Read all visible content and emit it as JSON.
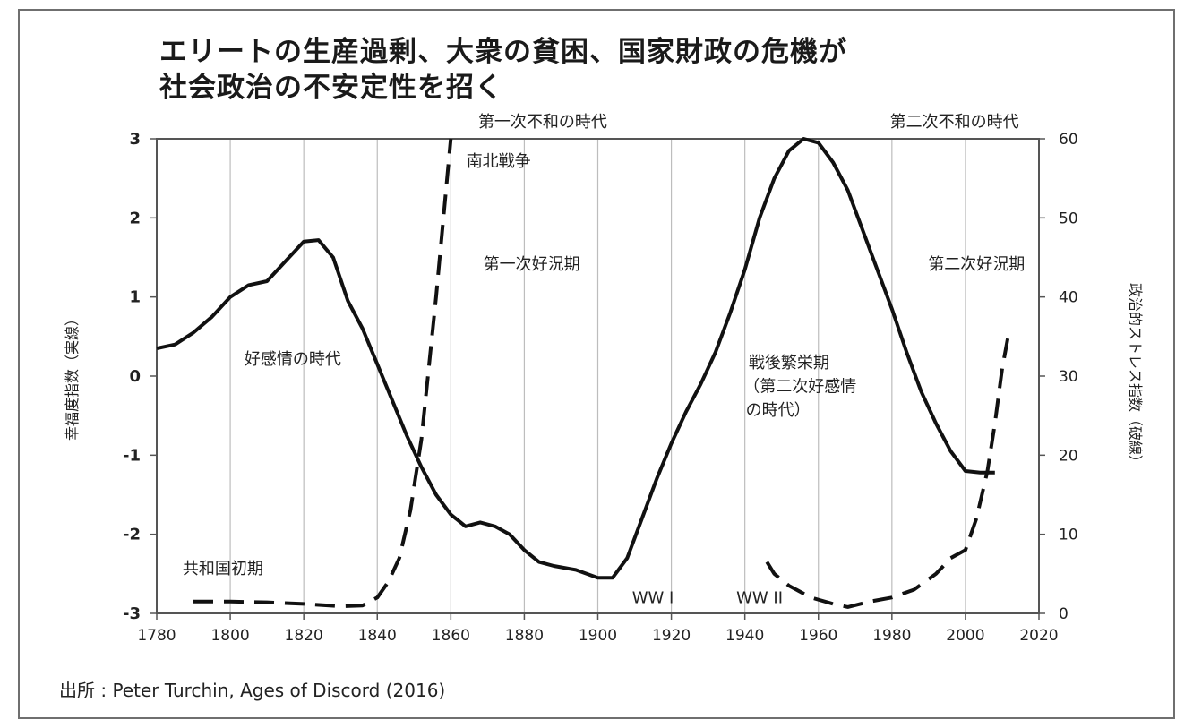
{
  "chart_data": {
    "type": "line",
    "title_line1": "エリートの生産過剰、大衆の貧困、国家財政の危機が",
    "title_line2": "社会政治の不安定性を招く",
    "ylabel_left": "幸福度指数（実線）",
    "ylabel_right": "政治的ストレス指数（破線）",
    "xlim": [
      1780,
      2020
    ],
    "x_ticks": [
      1780,
      1800,
      1820,
      1840,
      1860,
      1880,
      1900,
      1920,
      1940,
      1960,
      1980,
      2000,
      2020
    ],
    "ylim_left": [
      -3,
      3
    ],
    "y_ticks_left": [
      3,
      2,
      1,
      0,
      -1,
      -2,
      -3
    ],
    "ylim_right": [
      0,
      60
    ],
    "y_ticks_right": [
      60,
      50,
      40,
      30,
      20,
      10,
      0
    ],
    "grid": "vertical",
    "series": [
      {
        "name": "幸福度指数",
        "axis": "left",
        "style": "solid",
        "x": [
          1780,
          1785,
          1790,
          1795,
          1800,
          1805,
          1810,
          1815,
          1820,
          1824,
          1828,
          1832,
          1836,
          1840,
          1844,
          1848,
          1852,
          1856,
          1860,
          1864,
          1868,
          1872,
          1876,
          1880,
          1884,
          1888,
          1894,
          1900,
          1904,
          1908,
          1912,
          1916,
          1920,
          1924,
          1928,
          1932,
          1936,
          1940,
          1944,
          1948,
          1952,
          1956,
          1960,
          1964,
          1968,
          1972,
          1976,
          1980,
          1984,
          1988,
          1992,
          1996,
          2000,
          2004,
          2008
        ],
        "y": [
          0.35,
          0.4,
          0.55,
          0.75,
          1.0,
          1.15,
          1.2,
          1.45,
          1.7,
          1.72,
          1.5,
          0.95,
          0.6,
          0.15,
          -0.3,
          -0.75,
          -1.15,
          -1.5,
          -1.75,
          -1.9,
          -1.85,
          -1.9,
          -2.0,
          -2.2,
          -2.35,
          -2.4,
          -2.45,
          -2.55,
          -2.55,
          -2.3,
          -1.8,
          -1.3,
          -0.85,
          -0.45,
          -0.1,
          0.3,
          0.8,
          1.35,
          2.0,
          2.5,
          2.85,
          3.0,
          2.95,
          2.7,
          2.35,
          1.85,
          1.35,
          0.85,
          0.3,
          -0.2,
          -0.6,
          -0.95,
          -1.2,
          -1.22,
          -1.22
        ]
      },
      {
        "name": "政治的ストレス指数 (1)",
        "axis": "right",
        "style": "dashed",
        "x": [
          1790,
          1800,
          1810,
          1820,
          1830,
          1836,
          1840,
          1843,
          1846,
          1849,
          1852,
          1854,
          1856,
          1858,
          1860
        ],
        "y": [
          1.5,
          1.5,
          1.4,
          1.2,
          0.9,
          1.0,
          2.0,
          4.0,
          7.0,
          13.0,
          22.0,
          31.0,
          40.0,
          50.0,
          60.0
        ]
      },
      {
        "name": "政治的ストレス指数 (2)",
        "axis": "right",
        "style": "dashed",
        "x": [
          1946,
          1948,
          1952,
          1958,
          1964,
          1968,
          1974,
          1980,
          1986,
          1992,
          1996,
          2000,
          2003,
          2006,
          2008,
          2010,
          2012
        ],
        "y": [
          6.5,
          5.0,
          3.5,
          2.0,
          1.2,
          0.8,
          1.5,
          2.0,
          3.0,
          5.0,
          7.0,
          8.0,
          12.0,
          18.0,
          24.0,
          31.0,
          36.0
        ]
      }
    ],
    "annotations": [
      {
        "text": "第一次不和の時代",
        "x": 1885,
        "y_right": 61.5
      },
      {
        "text": "第二次不和の時代",
        "x": 1997,
        "y_right": 61.5
      },
      {
        "text": "南北戦争",
        "x": 1873,
        "y_right": 56.5
      },
      {
        "text": "第一次好況期",
        "x": 1882,
        "y_right": 43.5
      },
      {
        "text": "第二次好況期",
        "x": 2003,
        "y_right": 43.5
      },
      {
        "text": "好感情の時代",
        "x": 1817,
        "y_right": 31.5
      },
      {
        "text": "戦後繁栄期",
        "x": 1952,
        "y_right": 31.0
      },
      {
        "text": "（第二次好感情",
        "x": 1955,
        "y_right": 28.0
      },
      {
        "text": "の時代）",
        "x": 1949,
        "y_right": 25.0
      },
      {
        "text": "共和国初期",
        "x": 1798,
        "y_right": 5.0
      },
      {
        "text": "WW I",
        "x": 1915,
        "y_right": 1.3
      },
      {
        "text": "WW II",
        "x": 1944,
        "y_right": 1.3
      }
    ]
  },
  "source": "出所 : Peter Turchin, Ages of Discord (2016)"
}
